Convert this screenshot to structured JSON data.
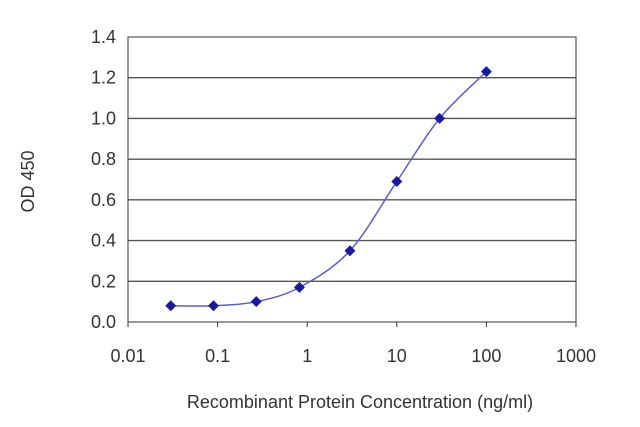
{
  "chart_data": {
    "type": "line",
    "title": "",
    "xlabel": "Recombinant Protein Concentration (ng/ml)",
    "ylabel": "OD 450",
    "x_scale": "log",
    "xlim": [
      0.01,
      1000
    ],
    "ylim": [
      0,
      1.4
    ],
    "x_ticks": [
      "0.01",
      "0.1",
      "1",
      "10",
      "100",
      "1000"
    ],
    "y_ticks": [
      "0.0",
      "0.2",
      "0.4",
      "0.6",
      "0.8",
      "1.0",
      "1.2",
      "1.4"
    ],
    "grid": "horizontal",
    "series": [
      {
        "x": [
          0.03,
          0.09,
          0.27,
          0.82,
          3,
          10,
          30,
          100
        ],
        "y": [
          0.08,
          0.08,
          0.1,
          0.17,
          0.35,
          0.69,
          1.0,
          1.23
        ]
      }
    ],
    "line_color": "#5a5fc4",
    "marker_color": "#1a1a9e",
    "grid_color": "#555555"
  }
}
